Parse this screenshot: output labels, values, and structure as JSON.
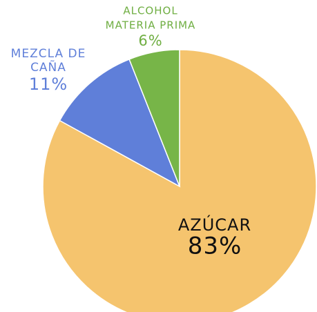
{
  "chart_data": {
    "type": "pie",
    "labels": [
      [
        "AZÚCAR"
      ],
      [
        "MEZCLA DE",
        "CAÑA"
      ],
      [
        "ALCOHOL",
        "MATERIA PRIMA"
      ]
    ],
    "values": [
      83,
      11,
      6
    ],
    "value_labels": [
      "83%",
      "11%",
      "6%"
    ],
    "colors": [
      "#f5c46e",
      "#5f7fd9",
      "#77b548"
    ]
  }
}
